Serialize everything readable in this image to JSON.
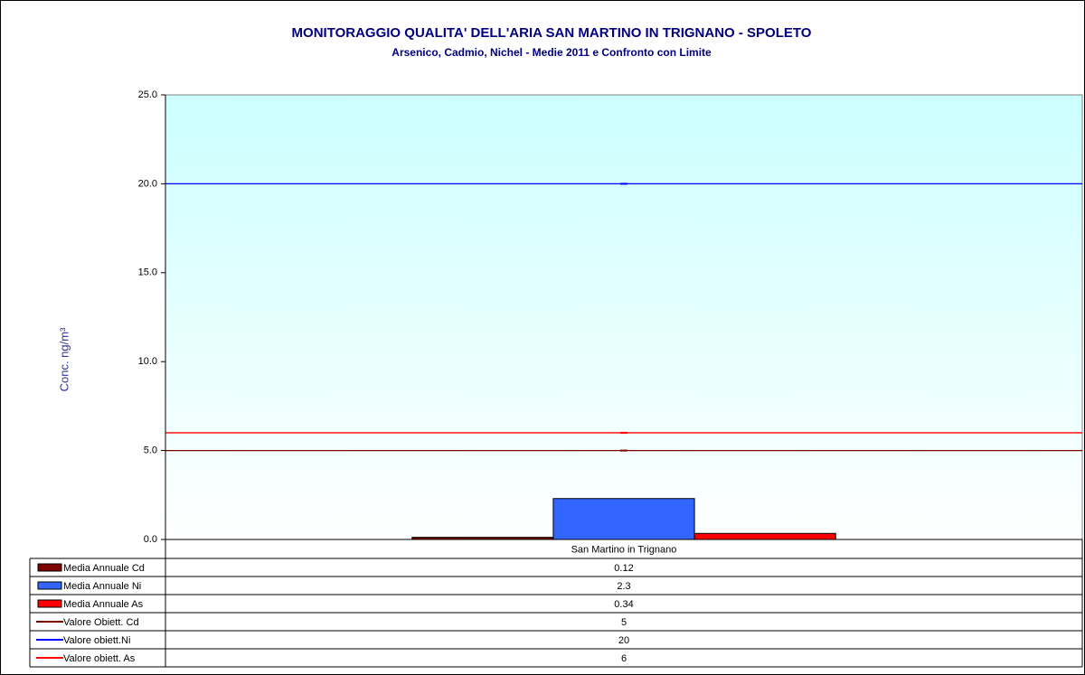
{
  "chart_data": {
    "type": "bar",
    "title": "MONITORAGGIO QUALITA' DELL'ARIA  SAN MARTINO IN TRIGNANO - SPOLETO",
    "subtitle": "Arsenico, Cadmio, Nichel - Medie 2011 e Confronto con Limite",
    "y_label": "Conc.  ng/m³",
    "categories": [
      "San Martino in Trignano"
    ],
    "series": [
      {
        "name": "Media Annuale Cd",
        "type": "bar",
        "color": "#800000",
        "values": [
          0.12
        ]
      },
      {
        "name": "Media Annuale Ni",
        "type": "bar",
        "color": "#3366ff",
        "values": [
          2.3
        ]
      },
      {
        "name": "Media Annuale As",
        "type": "bar",
        "color": "#ff0000",
        "values": [
          0.34
        ]
      },
      {
        "name": "Valore Obiett. Cd",
        "type": "line",
        "color": "#800000",
        "values": [
          5
        ]
      },
      {
        "name": "Valore obiett.Ni",
        "type": "line",
        "color": "#0000ff",
        "values": [
          20
        ]
      },
      {
        "name": "Valore obiett. As",
        "type": "line",
        "color": "#ff0000",
        "values": [
          6
        ]
      }
    ],
    "ylim": [
      0,
      25
    ],
    "yticks": [
      {
        "value": 0,
        "label": "0.0"
      },
      {
        "value": 5,
        "label": "5.0"
      },
      {
        "value": 10,
        "label": "10.0"
      },
      {
        "value": 15,
        "label": "15.0"
      },
      {
        "value": 20,
        "label": "20.0"
      },
      {
        "value": 25,
        "label": "25.0"
      }
    ]
  }
}
